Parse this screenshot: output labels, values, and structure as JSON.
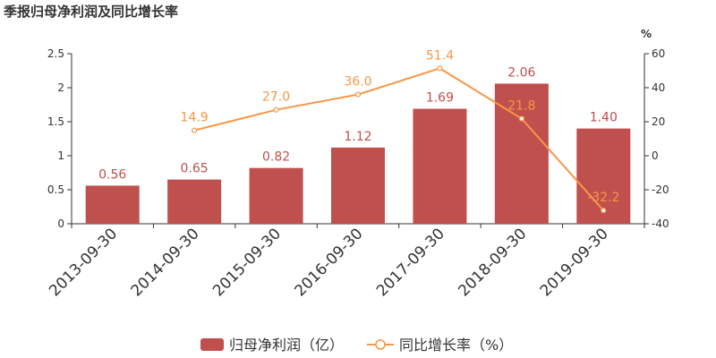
{
  "chart_data": {
    "title": "季报归母净利润及同比增长率",
    "type": "bar",
    "categories": [
      "2013-09-30",
      "2014-09-30",
      "2015-09-30",
      "2016-09-30",
      "2017-09-30",
      "2018-09-30",
      "2019-09-30"
    ],
    "series": [
      {
        "name": "归母净利润（亿）",
        "type": "bar",
        "axis": "left",
        "values": [
          0.56,
          0.65,
          0.82,
          1.12,
          1.69,
          2.06,
          1.4
        ],
        "labels": [
          "0.56",
          "0.65",
          "0.82",
          "1.12",
          "1.69",
          "2.06",
          "1.40"
        ],
        "color": "#c0504d"
      },
      {
        "name": "同比增长率（%）",
        "type": "line",
        "axis": "right",
        "values": [
          null,
          14.9,
          27.0,
          36.0,
          51.4,
          21.8,
          -32.2
        ],
        "labels": [
          "",
          "14.9",
          "27.0",
          "36.0",
          "51.4",
          "21.8",
          "-32.2"
        ],
        "color": "#f79646"
      }
    ],
    "y_left": {
      "ylim": [
        0,
        2.5
      ],
      "ticks": [
        "0",
        "0.5",
        "1",
        "1.5",
        "2",
        "2.5"
      ]
    },
    "y_right": {
      "label": "%",
      "ylim": [
        -40,
        60
      ],
      "ticks": [
        "-40",
        "-20",
        "0",
        "20",
        "40",
        "60"
      ]
    },
    "grid": false,
    "legend_position": "bottom"
  },
  "colors": {
    "bar": "#c0504d",
    "line": "#f79646",
    "axis": "#333333"
  }
}
